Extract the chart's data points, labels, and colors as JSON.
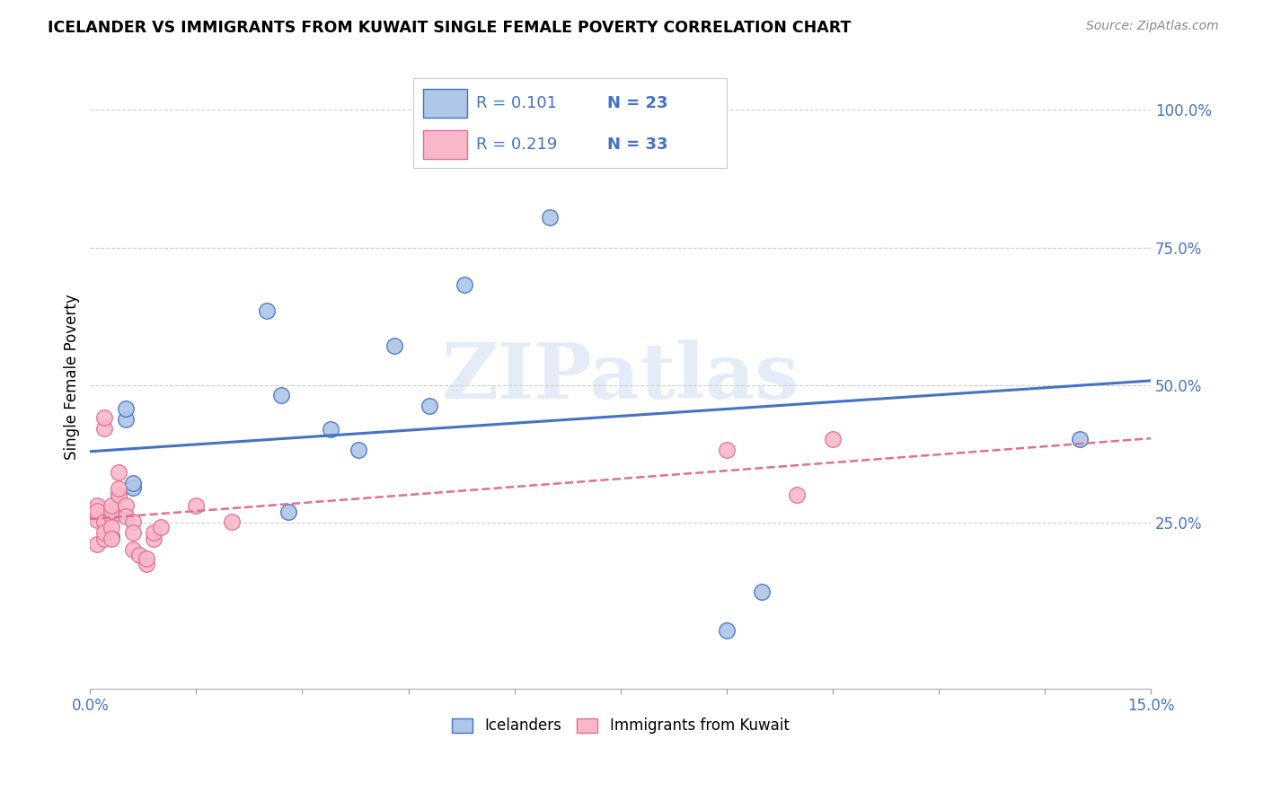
{
  "title": "ICELANDER VS IMMIGRANTS FROM KUWAIT SINGLE FEMALE POVERTY CORRELATION CHART",
  "source": "Source: ZipAtlas.com",
  "ylabel": "Single Female Poverty",
  "right_yticks": [
    0.0,
    0.25,
    0.5,
    0.75,
    1.0
  ],
  "right_yticklabels": [
    "",
    "25.0%",
    "50.0%",
    "75.0%",
    "100.0%"
  ],
  "xlim": [
    0.0,
    0.15
  ],
  "ylim": [
    -0.05,
    1.08
  ],
  "watermark": "ZIPatlas",
  "blue_color": "#aec6e8",
  "blue_line_color": "#4472c4",
  "pink_color": "#f9b8ca",
  "pink_line_color": "#e07090",
  "icelanders_x": [
    0.001,
    0.002,
    0.003,
    0.003,
    0.004,
    0.004,
    0.005,
    0.005,
    0.006,
    0.006,
    0.025,
    0.027,
    0.028,
    0.034,
    0.038,
    0.043,
    0.048,
    0.053,
    0.06,
    0.065,
    0.09,
    0.095,
    0.14
  ],
  "icelanders_y": [
    0.265,
    0.252,
    0.268,
    0.225,
    0.27,
    0.302,
    0.438,
    0.458,
    0.315,
    0.322,
    0.635,
    0.482,
    0.27,
    0.42,
    0.382,
    0.572,
    0.462,
    0.682,
    1.0,
    0.805,
    0.055,
    0.125,
    0.402
  ],
  "kuwait_x": [
    0.001,
    0.001,
    0.001,
    0.001,
    0.002,
    0.002,
    0.002,
    0.002,
    0.002,
    0.003,
    0.003,
    0.003,
    0.003,
    0.003,
    0.004,
    0.004,
    0.004,
    0.005,
    0.005,
    0.006,
    0.006,
    0.006,
    0.007,
    0.008,
    0.008,
    0.009,
    0.009,
    0.01,
    0.015,
    0.02,
    0.09,
    0.105,
    0.1
  ],
  "kuwait_y": [
    0.282,
    0.255,
    0.272,
    0.212,
    0.252,
    0.222,
    0.232,
    0.422,
    0.442,
    0.262,
    0.272,
    0.282,
    0.242,
    0.222,
    0.302,
    0.312,
    0.342,
    0.282,
    0.262,
    0.252,
    0.232,
    0.202,
    0.192,
    0.175,
    0.185,
    0.222,
    0.232,
    0.242,
    0.282,
    0.252,
    0.382,
    0.402,
    0.302
  ],
  "legend_r1": "R = 0.101",
  "legend_n1": "N = 23",
  "legend_r2": "R = 0.219",
  "legend_n2": "N = 33"
}
